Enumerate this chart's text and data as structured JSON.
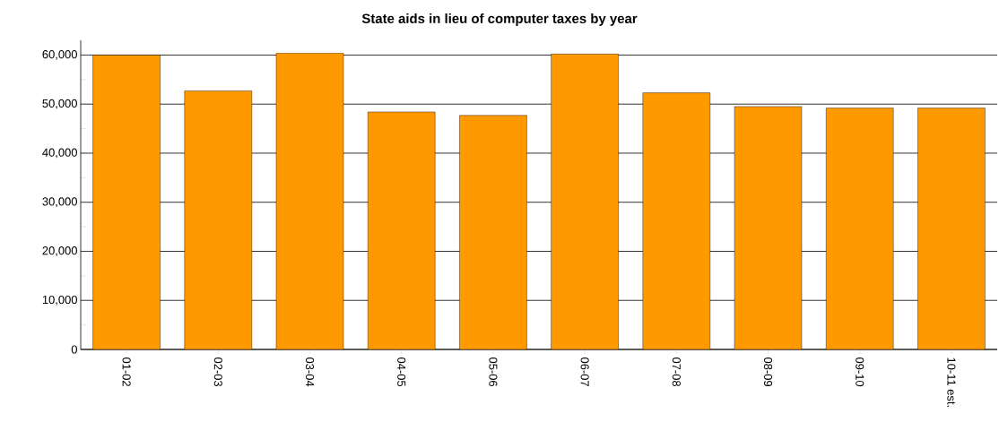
{
  "chart_data": {
    "type": "bar",
    "title": "State aids in lieu of computer taxes by year",
    "categories": [
      "01-02",
      "02-03",
      "03-04",
      "04-05",
      "05-06",
      "06-07",
      "07-08",
      "08-09",
      "09-10",
      "10-11 est."
    ],
    "values": [
      60000,
      52700,
      60400,
      48400,
      47700,
      60200,
      52300,
      49500,
      49200,
      49200
    ],
    "color": "#ff9900",
    "ylim": [
      0,
      63000
    ],
    "yticks": [
      {
        "value": 0,
        "label": "0"
      },
      {
        "value": 10000,
        "label": "10,000"
      },
      {
        "value": 20000,
        "label": "20,000"
      },
      {
        "value": 30000,
        "label": "30,000"
      },
      {
        "value": 40000,
        "label": "40,000"
      },
      {
        "value": 50000,
        "label": "50,000"
      },
      {
        "value": 60000,
        "label": "60,000"
      }
    ],
    "grid": "y"
  }
}
